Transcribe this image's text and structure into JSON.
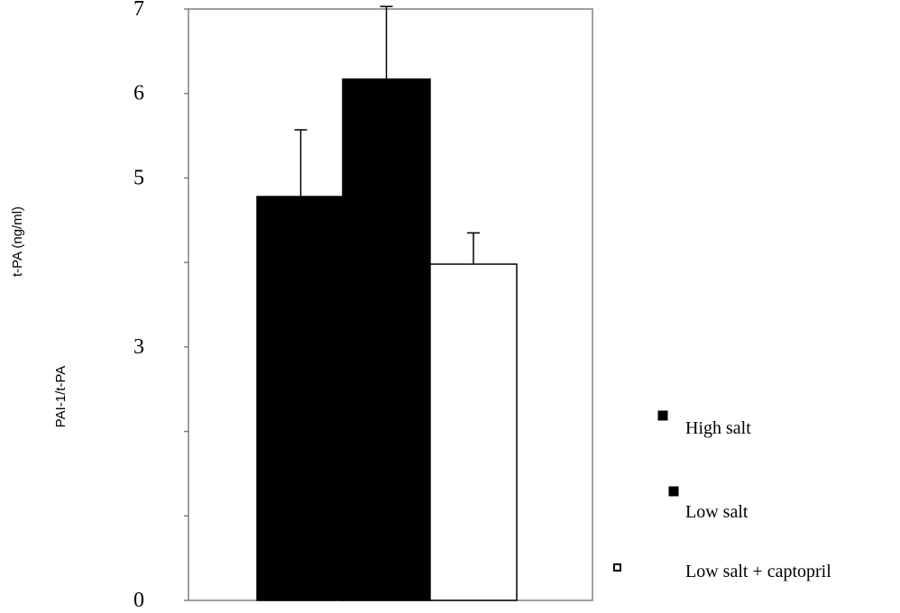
{
  "chart_data": {
    "type": "bar",
    "title": "",
    "ylabel_primary": "t-PA (ng/ml)",
    "ylabel_secondary": "PAI-1/t-PA",
    "ylim": [
      0,
      7
    ],
    "yticks": [
      {
        "value": 0,
        "label": "0"
      },
      {
        "value": 3,
        "label": "3"
      },
      {
        "value": 5,
        "label": "5"
      },
      {
        "value": 6,
        "label": "6"
      },
      {
        "value": 7,
        "label": "7"
      }
    ],
    "minor_ticks": [
      1,
      2,
      4
    ],
    "categories": [
      "High salt",
      "Low salt",
      "Low salt + captopril"
    ],
    "series": [
      {
        "name": "High salt",
        "value": 4.78,
        "error": 0.79,
        "color": "#000000"
      },
      {
        "name": "Low salt",
        "value": 6.17,
        "error": 0.86,
        "color": "#000000"
      },
      {
        "name": "Low salt + captopril",
        "value": 3.98,
        "error": 0.37,
        "color": "#ffffff"
      }
    ],
    "grid": false,
    "legend_position": "bottom-right"
  }
}
